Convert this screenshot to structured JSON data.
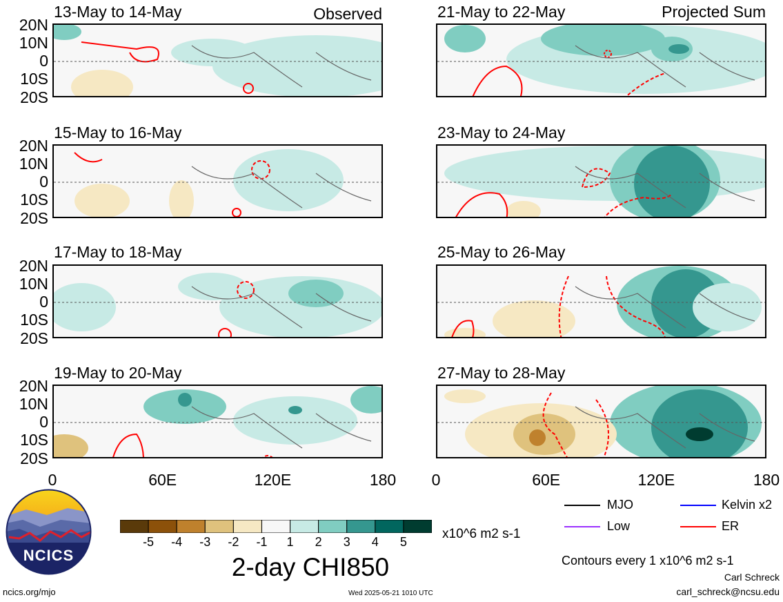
{
  "header": {
    "left_label": "Observed",
    "right_label": "Projected Sum"
  },
  "panels_left": [
    {
      "title": "13-May to 14-May"
    },
    {
      "title": "15-May to 16-May"
    },
    {
      "title": "17-May to 18-May"
    },
    {
      "title": "19-May to 20-May"
    }
  ],
  "panels_right": [
    {
      "title": "21-May to 22-May"
    },
    {
      "title": "23-May to 24-May"
    },
    {
      "title": "25-May to 26-May"
    },
    {
      "title": "27-May to 28-May"
    }
  ],
  "lat_labels": [
    "20N",
    "10N",
    "0",
    "10S",
    "20S"
  ],
  "lon_labels": [
    "0",
    "60E",
    "120E",
    "180"
  ],
  "colorbar": {
    "ticks": [
      "-5",
      "-4",
      "-3",
      "-2",
      "-1",
      "1",
      "2",
      "3",
      "4",
      "5"
    ],
    "colors": [
      "#5a3a0a",
      "#8c510a",
      "#bf812d",
      "#dfc27d",
      "#f6e8c3",
      "#f7f7f7",
      "#c7eae5",
      "#80cdc1",
      "#35978f",
      "#01665e",
      "#003c30"
    ],
    "units": "x10^6 m2 s-1",
    "title": "2-day CHI850"
  },
  "legend": [
    {
      "label": "MJO",
      "color": "#000000"
    },
    {
      "label": "Kelvin x2",
      "color": "#0000ff"
    },
    {
      "label": "Low",
      "color": "#9b30ff"
    },
    {
      "label": "ER",
      "color": "#ff0000"
    }
  ],
  "contours_note": "Contours every 1 x10^6 m2 s-1",
  "logo": {
    "text": "NCICS"
  },
  "footer": {
    "url": "ncics.org/mjo",
    "timestamp": "Wed 2025-05-21 1010 UTC",
    "author": "Carl Schreck",
    "email": "carl_schreck@ncsu.edu"
  }
}
